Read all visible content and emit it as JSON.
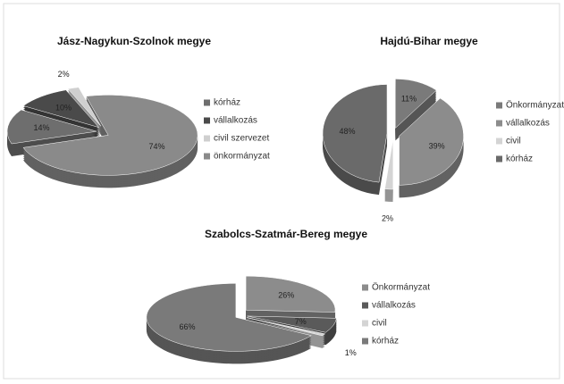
{
  "chart_data": [
    {
      "type": "pie",
      "title": "Jász-Nagykun-Szolnok megye",
      "categories": [
        "kórház",
        "vállalkozás",
        "civil szervezet",
        "önkormányzat"
      ],
      "values": [
        14,
        10,
        2,
        74
      ],
      "value_labels": [
        "14%",
        "10%",
        "2%",
        "74%"
      ],
      "colors": [
        "#6e6e6e",
        "#4a4a4a",
        "#cfcfcf",
        "#8a8a8a"
      ]
    },
    {
      "type": "pie",
      "title": "Hajdú-Bihar megye",
      "categories": [
        "Önkormányzat",
        "vállalkozás",
        "civil",
        "kórház"
      ],
      "values": [
        11,
        39,
        2,
        48
      ],
      "value_labels": [
        "11%",
        "39%",
        "2%",
        "48%"
      ],
      "colors": [
        "#7a7a7a",
        "#8c8c8c",
        "#d4d4d4",
        "#6a6a6a"
      ]
    },
    {
      "type": "pie",
      "title": "Szabolcs-Szatmár-Bereg megye",
      "categories": [
        "Önkormányzat",
        "vállalkozás",
        "civil",
        "kórház"
      ],
      "values": [
        26,
        7,
        1,
        66
      ],
      "value_labels": [
        "26%",
        "7%",
        "1%",
        "66%"
      ],
      "colors": [
        "#8c8c8c",
        "#5a5a5a",
        "#d4d4d4",
        "#7a7a7a"
      ]
    }
  ]
}
